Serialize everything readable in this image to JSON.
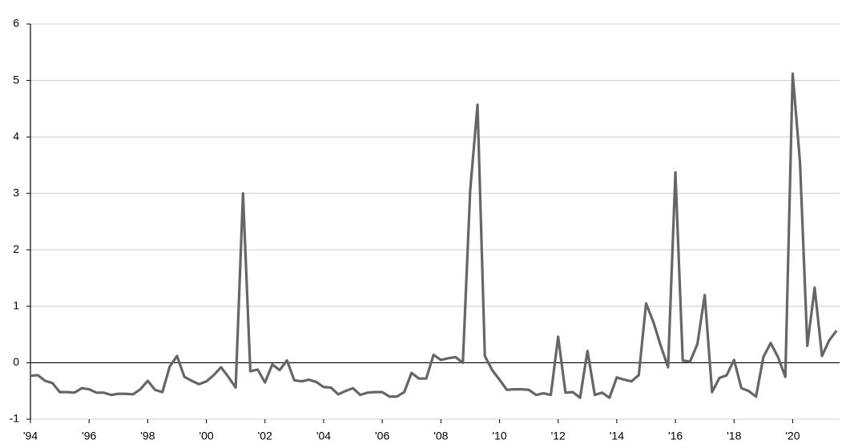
{
  "chart_data": {
    "type": "line",
    "x": [
      1994,
      1994.25,
      1994.5,
      1994.75,
      1995,
      1995.25,
      1995.5,
      1995.75,
      1996,
      1996.25,
      1996.5,
      1996.75,
      1997,
      1997.25,
      1997.5,
      1997.75,
      1998,
      1998.25,
      1998.5,
      1998.75,
      1999,
      1999.25,
      1999.5,
      1999.75,
      2000,
      2000.25,
      2000.5,
      2000.75,
      2001,
      2001.25,
      2001.5,
      2001.75,
      2002,
      2002.25,
      2002.5,
      2002.75,
      2003,
      2003.25,
      2003.5,
      2003.75,
      2004,
      2004.25,
      2004.5,
      2004.75,
      2005,
      2005.25,
      2005.5,
      2005.75,
      2006,
      2006.25,
      2006.5,
      2006.75,
      2007,
      2007.25,
      2007.5,
      2007.75,
      2008,
      2008.25,
      2008.5,
      2008.75,
      2009,
      2009.25,
      2009.5,
      2009.75,
      2010,
      2010.25,
      2010.5,
      2010.75,
      2011,
      2011.25,
      2011.5,
      2011.75,
      2012,
      2012.25,
      2012.5,
      2012.75,
      2013,
      2013.25,
      2013.5,
      2013.75,
      2014,
      2014.25,
      2014.5,
      2014.75,
      2015,
      2015.25,
      2015.5,
      2015.75,
      2016,
      2016.25,
      2016.5,
      2016.75,
      2017,
      2017.25,
      2017.5,
      2017.75,
      2018,
      2018.25,
      2018.5,
      2018.75,
      2019,
      2019.25,
      2019.5,
      2019.75,
      2020,
      2020.25,
      2020.5,
      2020.75,
      2021,
      2021.25,
      2021.5
    ],
    "series": [
      {
        "color": "#666666",
        "values": [
          -0.23,
          -0.22,
          -0.32,
          -0.36,
          -0.52,
          -0.52,
          -0.53,
          -0.45,
          -0.47,
          -0.53,
          -0.53,
          -0.57,
          -0.55,
          -0.55,
          -0.56,
          -0.47,
          -0.32,
          -0.48,
          -0.52,
          -0.07,
          0.12,
          -0.25,
          -0.32,
          -0.38,
          -0.33,
          -0.22,
          -0.08,
          -0.25,
          -0.44,
          3.0,
          -0.15,
          -0.12,
          -0.35,
          -0.03,
          -0.13,
          0.04,
          -0.31,
          -0.33,
          -0.3,
          -0.34,
          -0.43,
          -0.44,
          -0.56,
          -0.5,
          -0.45,
          -0.57,
          -0.53,
          -0.52,
          -0.52,
          -0.6,
          -0.6,
          -0.52,
          -0.18,
          -0.28,
          -0.28,
          0.14,
          0.05,
          0.08,
          0.1,
          0.0,
          3.05,
          4.57,
          0.12,
          -0.13,
          -0.3,
          -0.48,
          -0.47,
          -0.47,
          -0.48,
          -0.57,
          -0.54,
          -0.57,
          0.46,
          -0.53,
          -0.52,
          -0.62,
          0.21,
          -0.57,
          -0.53,
          -0.62,
          -0.26,
          -0.3,
          -0.33,
          -0.22,
          1.05,
          0.72,
          0.3,
          -0.08,
          3.37,
          0.04,
          0.02,
          0.33,
          1.2,
          -0.52,
          -0.27,
          -0.22,
          0.05,
          -0.45,
          -0.5,
          -0.6,
          0.1,
          0.35,
          0.1,
          -0.25,
          5.12,
          3.55,
          0.3,
          1.33,
          0.12,
          0.4,
          0.57
        ]
      }
    ],
    "xlim": [
      1994,
      2021.6
    ],
    "xticks": [
      {
        "value": 1994,
        "label": "'94"
      },
      {
        "value": 1996,
        "label": "'96"
      },
      {
        "value": 1998,
        "label": "'98"
      },
      {
        "value": 2000,
        "label": "'00"
      },
      {
        "value": 2002,
        "label": "'02"
      },
      {
        "value": 2004,
        "label": "'04"
      },
      {
        "value": 2006,
        "label": "'06"
      },
      {
        "value": 2008,
        "label": "'08"
      },
      {
        "value": 2010,
        "label": "'10"
      },
      {
        "value": 2012,
        "label": "'12"
      },
      {
        "value": 2014,
        "label": "'14"
      },
      {
        "value": 2016,
        "label": "'16"
      },
      {
        "value": 2018,
        "label": "'18"
      },
      {
        "value": 2020,
        "label": "'20"
      }
    ],
    "ylim": [
      -1,
      6
    ],
    "yticks": [
      -1,
      0,
      1,
      2,
      3,
      4,
      5,
      6
    ],
    "grid": true
  }
}
